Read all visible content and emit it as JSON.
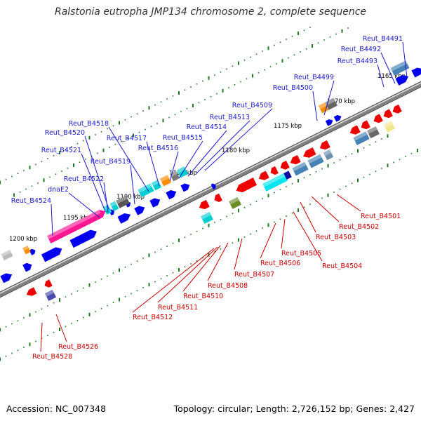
{
  "title": "Ralstonia eutropha JMP134 chromosome 2, complete sequence",
  "footer": {
    "accession": "Accession: NC_007348",
    "topology": "Topology: circular; Length: 2,726,152 bp; Genes: 2,427"
  },
  "colors": {
    "forward_label": "#1a1acc",
    "reverse_label": "#cc0000",
    "backbone": "#808080",
    "tick": "#1f7a1f",
    "forward_cds": "#0000ee",
    "reverse_cds": "#ee0000"
  },
  "kbp_ticks": [
    "1165 kbp",
    "1170 kbp",
    "1175 kbp",
    "1180 kbp",
    "1185 kbp",
    "1190 kbp",
    "1195 kbp",
    "1200 kbp"
  ],
  "forward_labels": [
    "Reut_B4491",
    "Reut_B4492",
    "Reut_B4493",
    "Reut_B4499",
    "Reut_B4500",
    "Reut_B4509",
    "Reut_B4513",
    "Reut_B4514",
    "Reut_B4515",
    "Reut_B4516",
    "Reut_B4517",
    "Reut_B4518",
    "Reut_B4519",
    "Reut_B4520",
    "Reut_B4521",
    "Reut_B4522",
    "dnaE2",
    "Reut_B4524"
  ],
  "reverse_labels": [
    "Reut_B4501",
    "Reut_B4502",
    "Reut_B4503",
    "Reut_B4504",
    "Reut_B4505",
    "Reut_B4506",
    "Reut_B4507",
    "Reut_B4508",
    "Reut_B4510",
    "Reut_B4511",
    "Reut_B4512",
    "Reut_B4526",
    "Reut_B4528"
  ]
}
